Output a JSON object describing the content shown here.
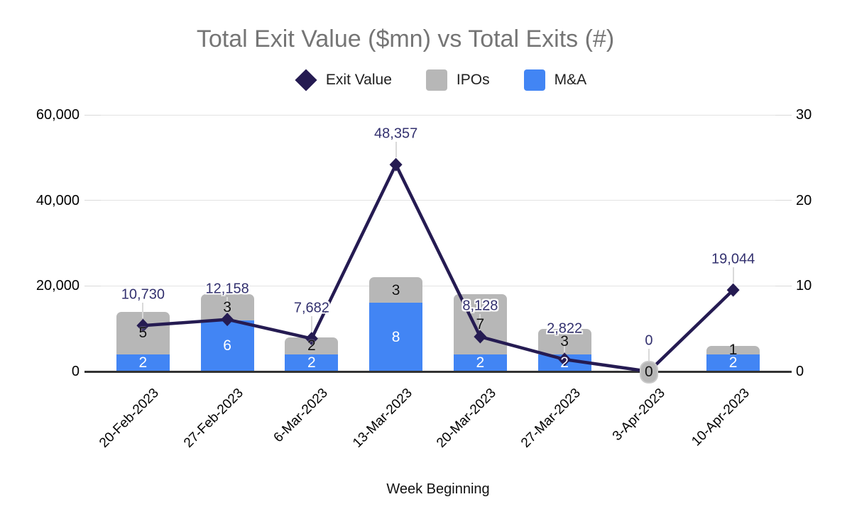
{
  "title": "Total Exit Value ($mn) vs Total Exits (#)",
  "legend": {
    "items": [
      {
        "label": "Exit Value",
        "marker": "diamond",
        "color": "#251b52"
      },
      {
        "label": "IPOs",
        "marker": "square",
        "color": "#b7b7b7"
      },
      {
        "label": "M&A",
        "marker": "square",
        "color": "#4285f4"
      }
    ]
  },
  "chart_data": {
    "type": "combo",
    "title": "Total Exit Value ($mn) vs Total Exits (#)",
    "categories": [
      "20-Feb-2023",
      "27-Feb-2023",
      "6-Mar-2023",
      "13-Mar-2023",
      "20-Mar-2023",
      "27-Mar-2023",
      "3-Apr-2023",
      "10-Apr-2023"
    ],
    "xlabel": "Week Beginning",
    "series": [
      {
        "name": "Exit Value",
        "type": "line",
        "axis": "left",
        "color": "#251b52",
        "values": [
          10730,
          12158,
          7682,
          48357,
          8128,
          2822,
          0,
          19044
        ],
        "point_labels": [
          "10,730",
          "12,158",
          "7,682",
          "48,357",
          "8,128",
          "2,822",
          "0",
          "19,044"
        ]
      },
      {
        "name": "IPOs",
        "type": "bar",
        "stack": "exits",
        "axis": "right",
        "color": "#b7b7b7",
        "values": [
          5,
          3,
          2,
          3,
          7,
          3,
          0,
          1
        ]
      },
      {
        "name": "M&A",
        "type": "bar",
        "stack": "exits",
        "axis": "right",
        "color": "#4285f4",
        "values": [
          2,
          6,
          2,
          8,
          2,
          2,
          0,
          2
        ]
      }
    ],
    "left_axis": {
      "min": 0,
      "max": 60000,
      "ticks": [
        0,
        20000,
        40000,
        60000
      ],
      "tick_labels": [
        "0",
        "20,000",
        "40,000",
        "60,000"
      ]
    },
    "right_axis": {
      "min": 0,
      "max": 30,
      "ticks": [
        0,
        10,
        20,
        30
      ],
      "tick_labels": [
        "0",
        "10",
        "20",
        "30"
      ]
    },
    "grid": true,
    "legend_position": "top"
  },
  "colors": {
    "line": "#251b52",
    "ipo_bar": "#b7b7b7",
    "mna_bar": "#4285f4",
    "point_label_text": "#33316f",
    "title_text": "#757575",
    "grid": "#e3e3e3",
    "tick": "#d9d9d9",
    "baseline": "#333333",
    "bar_label_on_blue": "#ffffff",
    "bar_label_on_gray": "#111111"
  }
}
